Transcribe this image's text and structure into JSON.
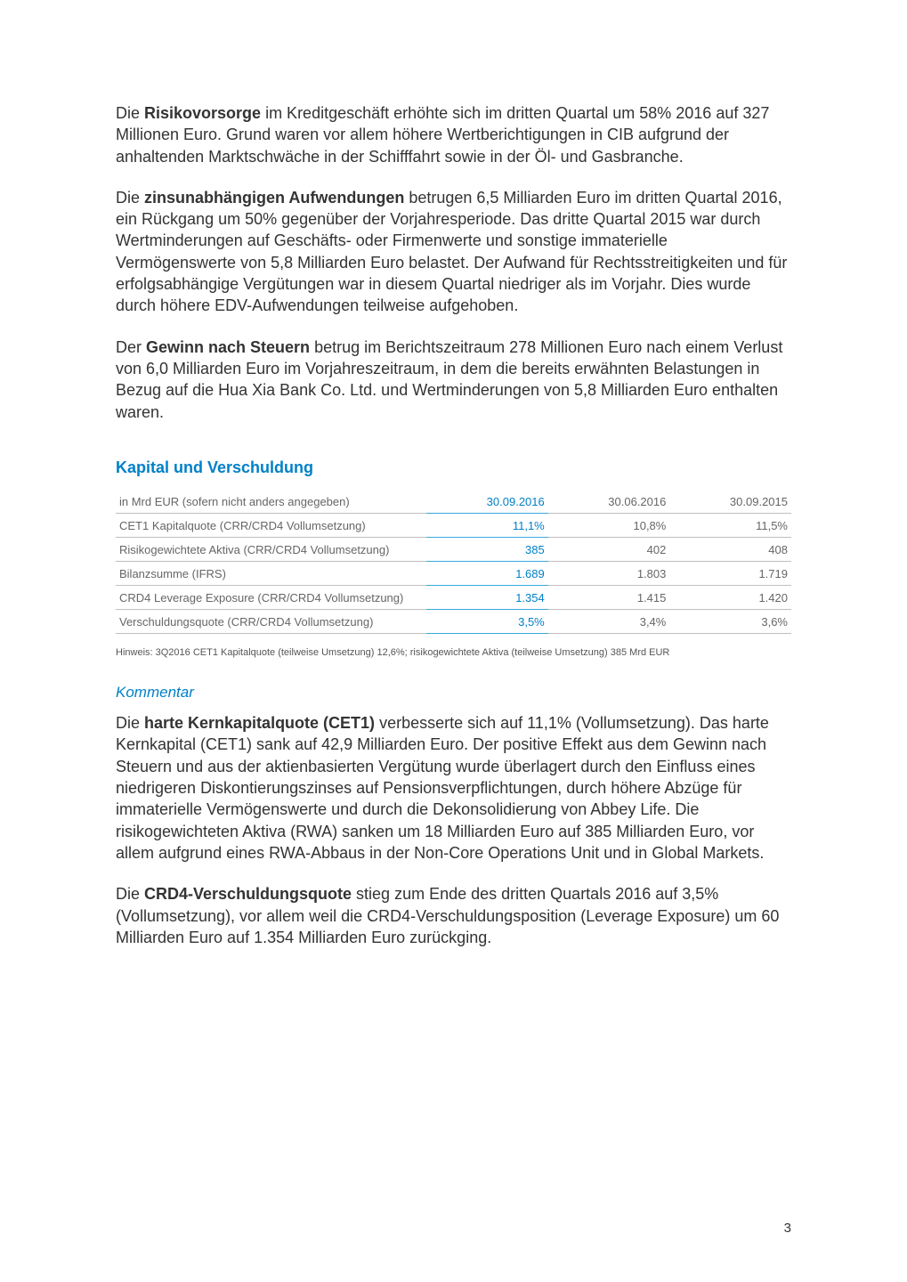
{
  "colors": {
    "text": "#333333",
    "muted": "#666666",
    "accent_link": "#0080c8",
    "table_highlight": "#3aa9e0",
    "table_border": "#bfbfbf",
    "background": "#ffffff"
  },
  "typography": {
    "body_fontsize_pt": 13,
    "heading_fontsize_pt": 13,
    "table_fontsize_pt": 10,
    "hinweis_fontsize_pt": 8
  },
  "paragraphs": {
    "p1": {
      "t1": "Die ",
      "b1": "Risikovorsorge",
      "t2": " im Kreditgeschäft erhöhte sich im dritten Quartal um 58% 2016 auf 327 Millionen Euro. Grund waren vor allem höhere Wertberichtigungen in CIB aufgrund der anhaltenden Marktschwäche in der Schifffahrt sowie in der Öl- und Gasbranche."
    },
    "p2": {
      "t1": "Die ",
      "b1": "zinsunabhängigen Aufwendungen",
      "t2": " betrugen 6,5 Milliarden Euro im dritten Quartal 2016, ein Rückgang um 50% gegenüber der Vorjahresperiode. Das dritte Quartal 2015 war durch Wertminderungen auf Geschäfts- oder Firmenwerte und sonstige immaterielle Vermögenswerte von 5,8 Milliarden Euro belastet. Der Aufwand für Rechtsstreitigkeiten und für erfolgsabhängige Vergütungen war in diesem Quartal niedriger als im Vorjahr. Dies wurde durch höhere EDV-Aufwendungen teilweise aufgehoben."
    },
    "p3": {
      "t1": "Der ",
      "b1": "Gewinn nach Steuern",
      "t2": " betrug im Berichtszeitraum 278 Millionen Euro nach einem Verlust von 6,0 Milliarden Euro im Vorjahreszeitraum, in dem die bereits erwähnten Belastungen in Bezug auf die Hua Xia Bank Co. Ltd. und Wertminderungen von 5,8 Milliarden Euro enthalten waren."
    }
  },
  "section_heading": "Kapital und Verschuldung",
  "table": {
    "header_label": "in Mrd EUR (sofern nicht anders angegeben)",
    "columns": [
      "30.09.2016",
      "30.06.2016",
      "30.09.2015"
    ],
    "highlight_col_index": 0,
    "rows": [
      {
        "label": "CET1 Kapitalquote (CRR/CRD4 Vollumsetzung)",
        "values": [
          "11,1%",
          "10,8%",
          "11,5%"
        ]
      },
      {
        "label": "Risikogewichtete Aktiva (CRR/CRD4 Vollumsetzung)",
        "values": [
          "385",
          "402",
          "408"
        ]
      },
      {
        "label": "Bilanzsumme (IFRS)",
        "values": [
          "1.689",
          "1.803",
          "1.719"
        ]
      },
      {
        "label": "CRD4 Leverage Exposure (CRR/CRD4 Vollumsetzung)",
        "values": [
          "1.354",
          "1.415",
          "1.420"
        ]
      },
      {
        "label": "Verschuldungsquote (CRR/CRD4 Vollumsetzung)",
        "values": [
          "3,5%",
          "3,4%",
          "3,6%"
        ]
      }
    ]
  },
  "hinweis": "Hinweis:  3Q2016 CET1 Kapitalquote (teilweise Umsetzung) 12,6%; risikogewichtete Aktiva (teilweise Umsetzung)  385 Mrd EUR",
  "kommentar_heading": "Kommentar",
  "kommentar": {
    "p1": {
      "t1": "Die ",
      "b1": "harte Kernkapitalquote (CET1)",
      "t2": " verbesserte sich auf 11,1% (Vollumsetzung). Das harte Kernkapital (CET1) sank auf 42,9 Milliarden Euro. Der positive Effekt aus dem Gewinn nach Steuern und aus der aktienbasierten Vergütung wurde überlagert durch den Einfluss eines niedrigeren Diskontierungszinses auf Pensionsverpflichtungen, durch höhere Abzüge für immaterielle Vermögenswerte und durch die Dekonsolidierung von Abbey Life. Die risikogewichteten Aktiva (RWA) sanken um 18 Milliarden Euro auf 385 Milliarden Euro, vor allem aufgrund eines RWA-Abbaus in der Non-Core Operations Unit und in Global Markets."
    },
    "p2": {
      "t1": "Die ",
      "b1": "CRD4-Verschuldungsquote",
      "t2": " stieg zum Ende des dritten Quartals 2016 auf 3,5% (Vollumsetzung), vor allem weil die CRD4-Verschuldungsposition (Leverage Exposure) um 60 Milliarden Euro auf 1.354 Milliarden Euro zurückging."
    }
  },
  "page_number": "3"
}
